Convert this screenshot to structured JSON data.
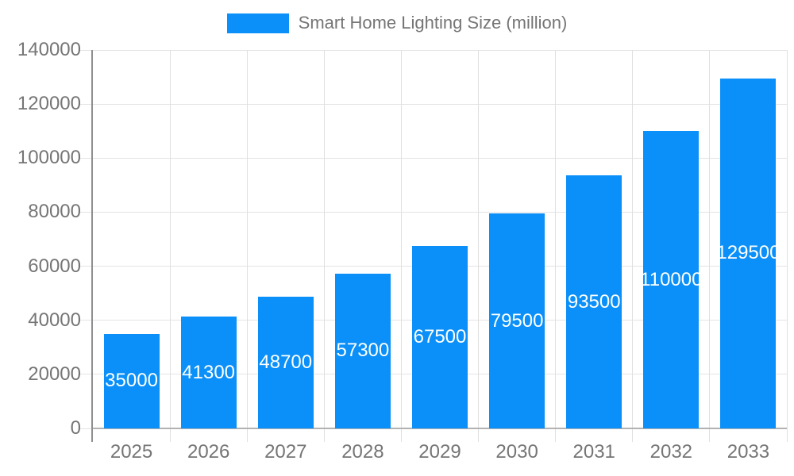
{
  "legend": {
    "label": "Smart Home Lighting Size (million)",
    "swatch_color": "#0a90f8"
  },
  "chart_data": {
    "type": "bar",
    "title": "Smart Home Lighting Size (million)",
    "categories": [
      "2025",
      "2026",
      "2027",
      "2028",
      "2029",
      "2030",
      "2031",
      "2032",
      "2033"
    ],
    "values": [
      35000,
      41300,
      48700,
      57300,
      67500,
      79500,
      93500,
      110000,
      129500
    ],
    "xlabel": "",
    "ylabel": "",
    "ylim": [
      0,
      140000
    ],
    "yticks": [
      0,
      20000,
      40000,
      60000,
      80000,
      100000,
      120000,
      140000
    ],
    "grid": true,
    "legend_position": "top",
    "bar_color": "#0a90f8",
    "value_label_color": "#ffffff",
    "axis_text_color": "#757575",
    "gridline_color": "#e3e3e3"
  }
}
